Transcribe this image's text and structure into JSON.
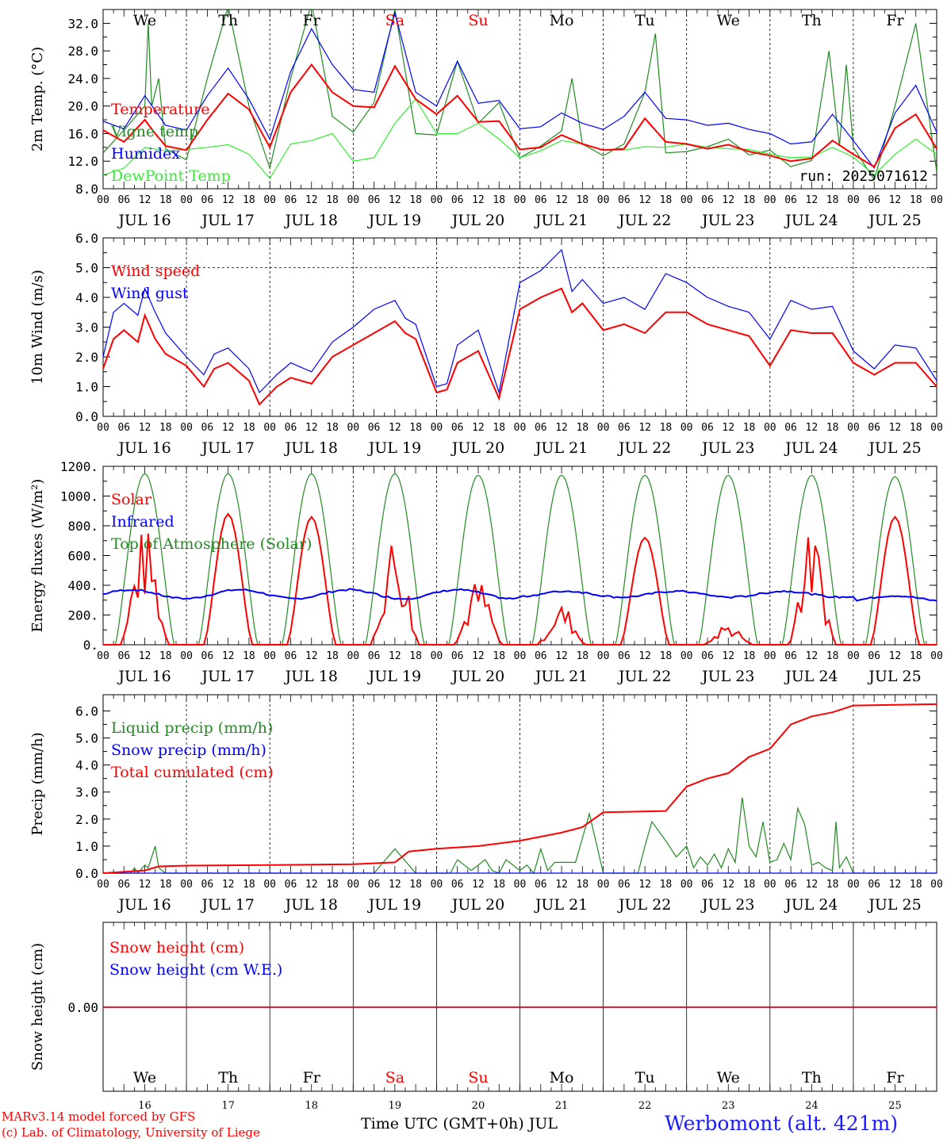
{
  "colors": {
    "red": "#ff0000",
    "green": "#228b22",
    "blue": "#0000ff",
    "lightgreen": "#33ee33",
    "black": "#000000",
    "station": "#1a1aff"
  },
  "run_label": "run: 2025071612",
  "footer": {
    "model_line1": "MARv3.14 model forced by GFS",
    "model_line2": "(c) Lab. of Climatology, University of Liege",
    "time_axis": "Time UTC (GMT+0h) JUL",
    "station": "Werbomont (alt. 421m)"
  },
  "days": {
    "weekday": [
      "We",
      "Th",
      "Fr",
      "Sa",
      "Su",
      "Mo",
      "Tu",
      "We",
      "Th",
      "Fr"
    ],
    "weekend_flags": [
      false,
      false,
      false,
      true,
      true,
      false,
      false,
      false,
      false,
      false
    ],
    "date_labels": [
      "JUL 16",
      "JUL 17",
      "JUL 18",
      "JUL 19",
      "JUL 20",
      "JUL 21",
      "JUL 22",
      "JUL 23",
      "JUL 24",
      "JUL 25"
    ],
    "day_numbers": [
      "16",
      "17",
      "18",
      "19",
      "20",
      "21",
      "22",
      "23",
      "24",
      "25"
    ],
    "hour_ticks": [
      "00",
      "06",
      "12",
      "18"
    ],
    "final_hour": "00"
  },
  "chart_data": [
    {
      "type": "line",
      "ylabel": "2m Temp. (°C)",
      "ylim": [
        8,
        34
      ],
      "yticks": [
        "8.0",
        "12.0",
        "16.0",
        "20.0",
        "24.0",
        "28.0",
        "32.0"
      ],
      "x_unit": "hours from 2025-07-16 00 UTC",
      "series": [
        {
          "name": "Temperature",
          "color": "red",
          "x": [
            0,
            6,
            12,
            15,
            18,
            24,
            30,
            36,
            42,
            48,
            54,
            60,
            66,
            72,
            78,
            84,
            90,
            96,
            102,
            108,
            114,
            120,
            126,
            132,
            138,
            144,
            150,
            156,
            162,
            168,
            174,
            180,
            186,
            192,
            198,
            204,
            210,
            216,
            222,
            228,
            234,
            240
          ],
          "values": [
            16.5,
            14.8,
            18.0,
            16.0,
            14.2,
            13.6,
            18.0,
            21.8,
            19.5,
            14.0,
            22.0,
            26.0,
            22.0,
            20.0,
            19.8,
            25.8,
            21.0,
            18.8,
            21.5,
            17.7,
            17.8,
            13.7,
            14.0,
            15.8,
            14.5,
            13.6,
            13.8,
            18.2,
            14.8,
            14.5,
            13.8,
            14.4,
            13.4,
            12.8,
            12.0,
            12.4,
            15.0,
            13.0,
            11.2,
            16.8,
            18.8,
            13.8
          ]
        },
        {
          "name": "Vigne temp",
          "color": "green",
          "x": [
            0,
            6,
            12,
            13,
            14,
            16,
            18,
            24,
            30,
            36,
            42,
            48,
            54,
            60,
            66,
            72,
            78,
            84,
            90,
            96,
            102,
            108,
            114,
            120,
            126,
            132,
            135,
            138,
            144,
            150,
            156,
            159,
            162,
            168,
            174,
            180,
            186,
            192,
            198,
            204,
            209,
            212,
            214,
            216,
            222,
            228,
            234,
            240
          ],
          "values": [
            13.2,
            16.5,
            20.0,
            32.0,
            20.0,
            24.0,
            13.8,
            12.2,
            24.0,
            34.5,
            20.0,
            11.0,
            24.0,
            35.0,
            18.5,
            16.2,
            20.5,
            34.0,
            16.0,
            15.8,
            26.5,
            17.5,
            20.5,
            12.5,
            14.2,
            16.4,
            24.0,
            14.5,
            12.8,
            14.5,
            22.0,
            30.5,
            13.2,
            13.4,
            14.1,
            15.2,
            12.9,
            13.6,
            11.2,
            12.1,
            28.0,
            14.2,
            26.0,
            14.0,
            9.3,
            20.0,
            32.0,
            10.5
          ]
        },
        {
          "name": "Humidex",
          "color": "blue",
          "x": [
            0,
            6,
            12,
            18,
            24,
            30,
            36,
            42,
            48,
            54,
            60,
            66,
            72,
            78,
            84,
            90,
            96,
            102,
            108,
            114,
            120,
            126,
            132,
            138,
            144,
            150,
            156,
            162,
            168,
            174,
            180,
            186,
            192,
            198,
            204,
            210,
            216,
            222,
            228,
            234,
            240
          ],
          "values": [
            17.8,
            16.7,
            21.5,
            17.2,
            16.5,
            21.5,
            25.5,
            21.0,
            15.2,
            25.0,
            31.2,
            26.0,
            22.4,
            22.0,
            33.5,
            22.0,
            20.0,
            26.5,
            20.4,
            20.8,
            16.7,
            17.0,
            19.0,
            17.5,
            16.6,
            18.5,
            22.0,
            18.2,
            18.0,
            17.2,
            17.5,
            16.6,
            16.0,
            14.5,
            14.8,
            18.8,
            15.0,
            11.0,
            19.0,
            23.0,
            16.2
          ]
        },
        {
          "name": "DewPoint Temp",
          "color": "lightgreen",
          "x": [
            0,
            6,
            12,
            18,
            24,
            30,
            36,
            42,
            48,
            54,
            60,
            66,
            72,
            78,
            84,
            90,
            96,
            102,
            108,
            114,
            120,
            126,
            132,
            138,
            144,
            150,
            156,
            162,
            168,
            174,
            180,
            186,
            192,
            198,
            204,
            210,
            216,
            222,
            228,
            234,
            240
          ],
          "values": [
            10.0,
            11.0,
            14.0,
            13.5,
            13.7,
            14.0,
            14.4,
            13.0,
            9.5,
            14.5,
            15.0,
            16.0,
            12.0,
            12.5,
            17.5,
            21.0,
            16.0,
            16.0,
            17.5,
            15.2,
            12.5,
            13.5,
            15.0,
            14.5,
            13.6,
            13.6,
            14.1,
            14.0,
            14.5,
            14.0,
            13.8,
            13.7,
            13.0,
            12.5,
            12.6,
            14.0,
            12.6,
            10.0,
            13.0,
            15.2,
            13.0
          ]
        }
      ],
      "legend": [
        "Temperature",
        "Vigne temp",
        "Humidex",
        "DewPoint Temp"
      ],
      "grid": "vertical dotted at 00 UTC"
    },
    {
      "type": "line",
      "ylabel": "10m Wind (m/s)",
      "ylim": [
        0,
        6
      ],
      "yticks": [
        "0.0",
        "1.0",
        "2.0",
        "3.0",
        "4.0",
        "5.0",
        "6.0"
      ],
      "reference_line": 5.0,
      "x_unit": "hours from 2025-07-16 00 UTC",
      "series": [
        {
          "name": "Wind speed",
          "color": "red",
          "x": [
            0,
            3,
            6,
            10,
            12,
            15,
            18,
            24,
            29,
            32,
            36,
            42,
            45,
            50,
            54,
            60,
            66,
            72,
            78,
            84,
            87,
            90,
            96,
            99,
            102,
            108,
            114,
            120,
            126,
            132,
            135,
            138,
            144,
            150,
            156,
            162,
            168,
            174,
            180,
            186,
            192,
            198,
            204,
            210,
            216,
            222,
            228,
            234,
            240
          ],
          "values": [
            1.6,
            2.6,
            2.9,
            2.5,
            3.4,
            2.6,
            2.1,
            1.7,
            1.0,
            1.6,
            1.8,
            1.2,
            0.4,
            1.0,
            1.3,
            1.1,
            2.0,
            2.4,
            2.8,
            3.2,
            2.8,
            2.6,
            0.8,
            0.9,
            1.8,
            2.2,
            0.6,
            3.6,
            4.0,
            4.3,
            3.5,
            3.8,
            2.9,
            3.1,
            2.8,
            3.5,
            3.5,
            3.1,
            2.9,
            2.7,
            1.7,
            2.9,
            2.8,
            2.8,
            1.8,
            1.4,
            1.8,
            1.8,
            1.0
          ]
        },
        {
          "name": "Wind gust",
          "color": "blue",
          "x": [
            0,
            3,
            6,
            10,
            12,
            15,
            18,
            24,
            29,
            32,
            36,
            42,
            45,
            50,
            54,
            60,
            66,
            72,
            78,
            84,
            87,
            90,
            96,
            99,
            102,
            108,
            114,
            120,
            126,
            132,
            135,
            138,
            144,
            150,
            156,
            162,
            168,
            174,
            180,
            186,
            192,
            198,
            204,
            210,
            216,
            222,
            228,
            234,
            240
          ],
          "values": [
            2.0,
            3.5,
            3.8,
            3.4,
            4.3,
            3.5,
            2.8,
            2.0,
            1.4,
            2.1,
            2.3,
            1.6,
            0.8,
            1.4,
            1.8,
            1.5,
            2.5,
            3.0,
            3.6,
            3.9,
            3.3,
            3.1,
            1.0,
            1.1,
            2.4,
            2.9,
            0.8,
            4.5,
            4.9,
            5.6,
            4.2,
            4.6,
            3.8,
            4.0,
            3.6,
            4.8,
            4.5,
            4.0,
            3.7,
            3.5,
            2.6,
            3.9,
            3.6,
            3.7,
            2.2,
            1.6,
            2.4,
            2.3,
            1.2
          ]
        }
      ],
      "legend": [
        "Wind speed",
        "Wind gust"
      ],
      "grid": "vertical dotted at 00 UTC; horizontal dashed at 5.0"
    },
    {
      "type": "line",
      "ylabel": "Energy fluxes (W/m²)",
      "ylim": [
        0,
        1200
      ],
      "yticks": [
        "0.",
        "200.",
        "400.",
        "600.",
        "800.",
        "1000.",
        "1200."
      ],
      "x_unit": "hours from 2025-07-16 00 UTC",
      "day_peaks": {
        "toa": [
          1150,
          1150,
          1150,
          1150,
          1140,
          1140,
          1140,
          1140,
          1140,
          1130
        ],
        "solar": [
          800,
          880,
          860,
          770,
          450,
          280,
          720,
          150,
          770,
          860
        ]
      },
      "series": [
        {
          "name": "Solar",
          "color": "red"
        },
        {
          "name": "Infrared",
          "color": "blue",
          "value_range": [
            310,
            390
          ]
        },
        {
          "name": "Top of Atmosphere (Solar)",
          "color": "green"
        }
      ],
      "legend": [
        "Solar",
        "Infrared",
        "Top of Atmosphere (Solar)"
      ],
      "grid": "vertical dotted at 00 UTC"
    },
    {
      "type": "line",
      "ylabel": "Precip (mm/h)",
      "ylim": [
        0,
        6.6
      ],
      "yticks": [
        "0.0",
        "1.0",
        "2.0",
        "3.0",
        "4.0",
        "5.0",
        "6.0"
      ],
      "x_unit": "hours from 2025-07-16 00 UTC",
      "series": [
        {
          "name": "Liquid precip (mm/h)",
          "color": "green",
          "x": [
            0,
            8,
            9,
            10,
            12,
            13,
            15,
            16,
            18,
            30,
            60,
            78,
            82,
            84,
            86,
            90,
            96,
            100,
            102,
            106,
            110,
            112,
            114,
            116,
            120,
            122,
            124,
            126,
            128,
            130,
            136,
            140,
            144,
            150,
            154,
            156,
            158,
            162,
            165,
            168,
            170,
            172,
            174,
            176,
            178,
            180,
            182,
            184,
            186,
            188,
            190,
            192,
            194,
            196,
            198,
            200,
            202,
            204,
            206,
            208,
            210,
            211,
            212,
            214,
            216,
            218,
            240
          ],
          "values": [
            0,
            0,
            0.2,
            0,
            0.3,
            0.2,
            1.0,
            0.2,
            0,
            0,
            0,
            0,
            0.6,
            0.9,
            0.6,
            0,
            0,
            0,
            0.5,
            0.1,
            0.5,
            0.1,
            0,
            0.5,
            0.1,
            0.3,
            0,
            0.9,
            0.1,
            0.4,
            0.4,
            2.2,
            0,
            0,
            0,
            1.0,
            1.9,
            1.2,
            0.6,
            1.0,
            0.2,
            0.6,
            0.3,
            0.7,
            0.2,
            0.9,
            0.4,
            2.8,
            1.0,
            0.6,
            1.9,
            0.4,
            0.5,
            1.1,
            0.5,
            2.4,
            1.8,
            0.3,
            0.4,
            0.2,
            0.1,
            1.9,
            0.2,
            0.6,
            0,
            0,
            0
          ]
        },
        {
          "name": "Snow precip (mm/h)",
          "color": "blue",
          "x": [
            0,
            240
          ],
          "values": [
            0,
            0
          ]
        },
        {
          "name": "Total cumulated (cm)",
          "color": "red",
          "x": [
            0,
            12,
            16,
            24,
            48,
            72,
            84,
            88,
            96,
            108,
            120,
            132,
            138,
            144,
            162,
            168,
            174,
            180,
            186,
            192,
            198,
            204,
            210,
            216,
            240
          ],
          "values": [
            0,
            0.1,
            0.25,
            0.28,
            0.3,
            0.33,
            0.4,
            0.8,
            0.9,
            1.0,
            1.2,
            1.5,
            1.7,
            2.25,
            2.3,
            3.2,
            3.5,
            3.7,
            4.3,
            4.6,
            5.5,
            5.8,
            5.95,
            6.2,
            6.25
          ]
        }
      ],
      "legend": [
        "Liquid precip (mm/h)",
        "Snow precip (mm/h)",
        "Total cumulated (cm)"
      ],
      "grid": "vertical dotted at 00 UTC"
    },
    {
      "type": "line",
      "ylabel": "Snow height (cm)",
      "yticks": [
        "0.00"
      ],
      "x_unit": "hours from 2025-07-16 00 UTC",
      "series": [
        {
          "name": "Snow height (cm)",
          "color": "red",
          "x": [
            0,
            240
          ],
          "values": [
            0,
            0
          ]
        },
        {
          "name": "Snow height (cm W.E.)",
          "color": "blue",
          "x": [
            0,
            240
          ],
          "values": [
            0,
            0
          ]
        }
      ],
      "legend": [
        "Snow height (cm)",
        "Snow height (cm W.E.)"
      ],
      "grid": "vertical solid at 00 UTC"
    }
  ]
}
